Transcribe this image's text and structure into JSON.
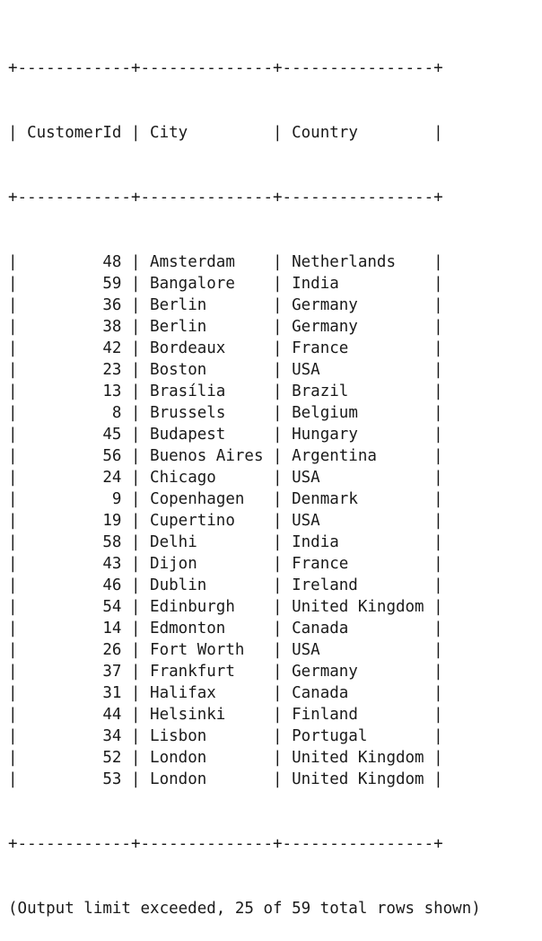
{
  "table": {
    "headers": [
      "CustomerId",
      "City",
      "Country"
    ],
    "rows": [
      [
        "48",
        "Amsterdam",
        "Netherlands"
      ],
      [
        "59",
        "Bangalore",
        "India"
      ],
      [
        "36",
        "Berlin",
        "Germany"
      ],
      [
        "38",
        "Berlin",
        "Germany"
      ],
      [
        "42",
        "Bordeaux",
        "France"
      ],
      [
        "23",
        "Boston",
        "USA"
      ],
      [
        "13",
        "Brasília",
        "Brazil"
      ],
      [
        "8",
        "Brussels",
        "Belgium"
      ],
      [
        "45",
        "Budapest",
        "Hungary"
      ],
      [
        "56",
        "Buenos Aires",
        "Argentina"
      ],
      [
        "24",
        "Chicago",
        "USA"
      ],
      [
        "9",
        "Copenhagen",
        "Denmark"
      ],
      [
        "19",
        "Cupertino",
        "USA"
      ],
      [
        "58",
        "Delhi",
        "India"
      ],
      [
        "43",
        "Dijon",
        "France"
      ],
      [
        "46",
        "Dublin",
        "Ireland"
      ],
      [
        "54",
        "Edinburgh",
        "United Kingdom"
      ],
      [
        "14",
        "Edmonton",
        "Canada"
      ],
      [
        "26",
        "Fort Worth",
        "USA"
      ],
      [
        "37",
        "Frankfurt",
        "Germany"
      ],
      [
        "31",
        "Halifax",
        "Canada"
      ],
      [
        "44",
        "Helsinki",
        "Finland"
      ],
      [
        "34",
        "Lisbon",
        "Portugal"
      ],
      [
        "52",
        "London",
        "United Kingdom"
      ],
      [
        "53",
        "London",
        "United Kingdom"
      ]
    ]
  },
  "footer": {
    "message": "(Output limit exceeded, 25 of 59 total rows shown)"
  }
}
